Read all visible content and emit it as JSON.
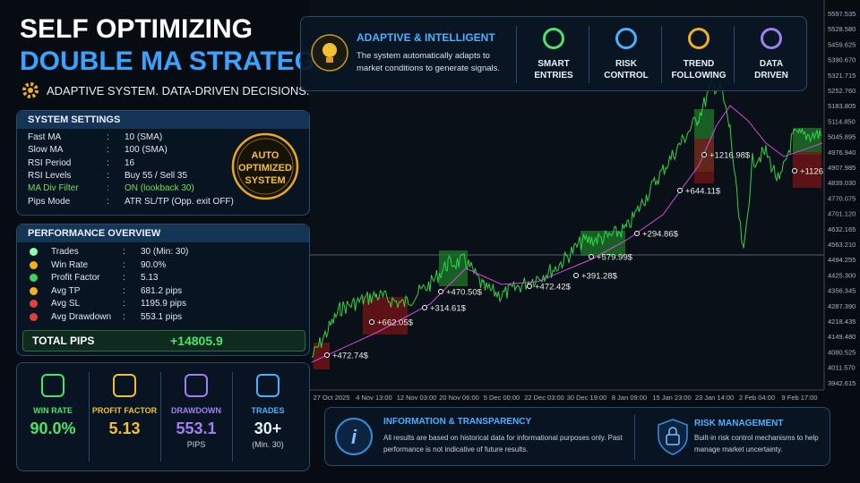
{
  "header": {
    "title_line1": "SELF OPTIMIZING",
    "title_line2": "DOUBLE MA STRATEGY",
    "tagline": "ADAPTIVE SYSTEM. DATA-DRIVEN DECISIONS."
  },
  "features": {
    "title": "ADAPTIVE & INTELLIGENT",
    "text": "The system automatically adapts to market conditions to generate signals.",
    "items": [
      "SMART ENTRIES",
      "RISK CONTROL",
      "TREND FOLLOWING",
      "DATA DRIVEN"
    ]
  },
  "settings": {
    "title": "SYSTEM SETTINGS",
    "rows": [
      [
        "Fast MA",
        "10  (SMA)"
      ],
      [
        "Slow MA",
        "100  (SMA)"
      ],
      [
        "RSI Period",
        "16"
      ],
      [
        "RSI Levels",
        "Buy 55 / Sell 35"
      ],
      [
        "MA Div Filter",
        "ON (lookback 30)"
      ],
      [
        "Pips Mode",
        "ATR SL/TP (Opp. exit OFF)"
      ]
    ]
  },
  "badge": "AUTO OPTIMIZED SYSTEM",
  "performance": {
    "title": "PERFORMANCE OVERVIEW",
    "rows": [
      [
        "Trades",
        "30 (Min: 30)"
      ],
      [
        "Win Rate",
        "90.0%"
      ],
      [
        "Profit Factor",
        "5.13"
      ],
      [
        "Avg TP",
        "681.2 pips"
      ],
      [
        "Avg SL",
        "1195.9 pips"
      ],
      [
        "Avg Drawdown",
        "553.1 pips"
      ]
    ],
    "total_label": "TOTAL PIPS",
    "total_value": "+14805.9"
  },
  "cards": [
    {
      "label": "WIN RATE",
      "value": "90.0%"
    },
    {
      "label": "PROFIT FACTOR",
      "value": "5.13"
    },
    {
      "label": "DRAWDOWN",
      "value": "553.1",
      "unit": "PIPS"
    },
    {
      "label": "TRADES",
      "value": "30+",
      "unit": "(Min. 30)"
    }
  ],
  "price_chart": {
    "y_labels": [
      "5597.535",
      "5528.580",
      "5459.625",
      "5390.670",
      "5321.715",
      "5252.760",
      "5183.805",
      "5114.850",
      "5045.895",
      "4976.940",
      "4907.985",
      "4839.030",
      "4770.075",
      "4701.120",
      "4632.165",
      "4563.210",
      "4494.255",
      "4425.300",
      "4356.345",
      "4287.390",
      "4218.435",
      "4149.480",
      "4080.525",
      "4011.570",
      "3942.615"
    ],
    "x_labels": [
      "27 Oct 2025",
      "4 Nov 13:00",
      "12 Nov 03:00",
      "20 Nov 06:00",
      "5 Dec 00:00",
      "22 Dec 03:00",
      "30 Dec 19:00",
      "8 Jan 09:00",
      "15 Jan 23:00",
      "23 Jan 14:00",
      "2 Feb 04:00",
      "9 Feb 17:00"
    ],
    "trades": [
      "+472.74$",
      "+662.05$",
      "+314.61$",
      "+470.50$",
      "+472.42$",
      "+391.28$",
      "+579.99$",
      "+294.86$",
      "+644.11$",
      "+1216.98$",
      "+1126"
    ]
  },
  "info": {
    "title": "INFORMATION & TRANSPARENCY",
    "text": "All results are based on historical data for informational purposes only. Past performance is not indicative of future results."
  },
  "risk": {
    "title": "RISK MANAGEMENT",
    "text": "Built-in risk control mechanisms to help manage market uncertainty."
  }
}
